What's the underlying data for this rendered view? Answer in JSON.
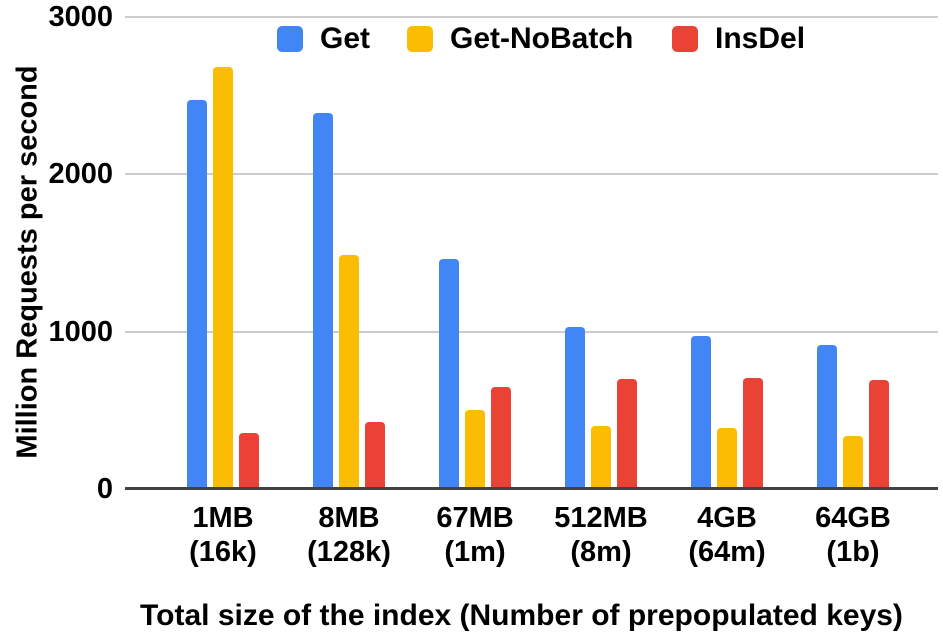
{
  "chart_data": {
    "type": "bar",
    "title": "",
    "xlabel": "Total size of the index (Number of prepopulated keys)",
    "ylabel": "Million Requests per second",
    "ylim": [
      0,
      3000
    ],
    "yticks": [
      0,
      1000,
      2000,
      3000
    ],
    "grid": true,
    "legend_position": "top",
    "categories": [
      "1MB\n(16k)",
      "8MB\n(128k)",
      "67MB\n(1m)",
      "512MB\n(8m)",
      "4GB\n(64m)",
      "64GB\n(1b)"
    ],
    "series": [
      {
        "name": "Get",
        "color": "#4285F4",
        "values": [
          2470,
          2390,
          1460,
          1030,
          970,
          915
        ]
      },
      {
        "name": "Get-NoBatch",
        "color": "#FBBC04",
        "values": [
          2680,
          1490,
          500,
          400,
          385,
          340
        ]
      },
      {
        "name": "InsDel",
        "color": "#EA4335",
        "values": [
          355,
          425,
          650,
          700,
          705,
          690
        ]
      }
    ],
    "colors": {
      "gridline": "#cccccc",
      "axis_line": "#424242",
      "text": "#000000",
      "background": "#ffffff"
    }
  }
}
